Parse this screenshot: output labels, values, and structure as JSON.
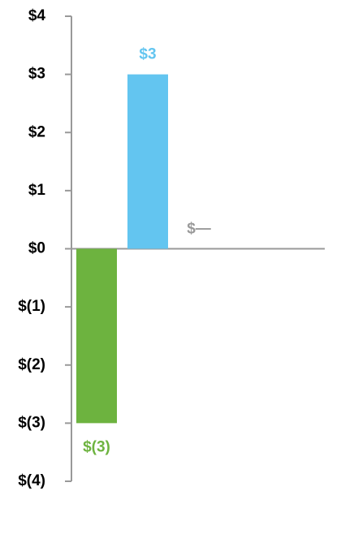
{
  "chart_data": {
    "type": "bar",
    "categories": [
      null,
      null,
      null
    ],
    "values": [
      -3,
      3,
      0
    ],
    "value_labels": [
      "$(3)",
      "$3",
      "$—"
    ],
    "colors": [
      "#6db33f",
      "#63c5f0",
      "#999999"
    ],
    "ylim": [
      -4,
      4
    ],
    "yticks": [
      {
        "value": 4,
        "label": "$4"
      },
      {
        "value": 3,
        "label": "$3"
      },
      {
        "value": 2,
        "label": "$2"
      },
      {
        "value": 1,
        "label": "$1"
      },
      {
        "value": 0,
        "label": "$0"
      },
      {
        "value": -1,
        "label": "$(1)"
      },
      {
        "value": -2,
        "label": "$(2)"
      },
      {
        "value": -3,
        "label": "$(3)"
      },
      {
        "value": -4,
        "label": "$(4)"
      }
    ],
    "grid": false
  }
}
